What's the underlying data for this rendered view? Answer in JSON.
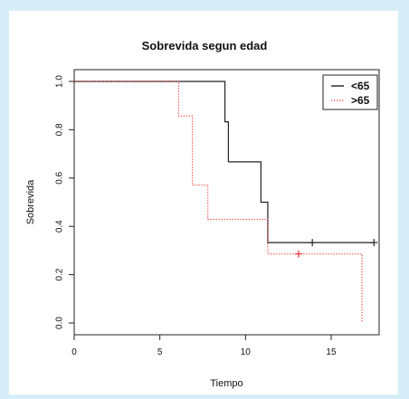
{
  "chart_data": {
    "type": "line",
    "subtype": "step",
    "title": "Sobrevida segun edad",
    "xlabel": "Tiempo",
    "ylabel": "Sobrevida",
    "xlim": [
      0,
      17.8
    ],
    "ylim": [
      0,
      1
    ],
    "x_ticks": [
      0,
      5,
      10,
      15
    ],
    "y_ticks": [
      0.0,
      0.2,
      0.4,
      0.6,
      0.8,
      1.0
    ],
    "x_tick_labels": [
      "0",
      "5",
      "10",
      "15"
    ],
    "y_tick_labels": [
      "0.0",
      "0.2",
      "0.4",
      "0.6",
      "0.8",
      "1.0"
    ],
    "grid": false,
    "legend": {
      "position": "top-right",
      "entries": [
        "<65",
        ">65"
      ]
    },
    "series": [
      {
        "name": "<65",
        "color": "#222222",
        "dash": "solid",
        "points": [
          {
            "x": 0,
            "y": 1.0
          },
          {
            "x": 8.8,
            "y": 1.0
          },
          {
            "x": 8.8,
            "y": 0.833
          },
          {
            "x": 9.0,
            "y": 0.833
          },
          {
            "x": 9.0,
            "y": 0.667
          },
          {
            "x": 10.9,
            "y": 0.667
          },
          {
            "x": 10.9,
            "y": 0.5
          },
          {
            "x": 11.3,
            "y": 0.5
          },
          {
            "x": 11.3,
            "y": 0.333
          },
          {
            "x": 17.5,
            "y": 0.333
          }
        ],
        "censored": [
          {
            "x": 13.9,
            "y": 0.333
          },
          {
            "x": 17.5,
            "y": 0.333
          }
        ]
      },
      {
        "name": ">65",
        "color": "#ee3333",
        "dash": "dotted",
        "points": [
          {
            "x": 0,
            "y": 1.0
          },
          {
            "x": 6.1,
            "y": 1.0
          },
          {
            "x": 6.1,
            "y": 0.857
          },
          {
            "x": 6.9,
            "y": 0.857
          },
          {
            "x": 6.9,
            "y": 0.571
          },
          {
            "x": 7.8,
            "y": 0.571
          },
          {
            "x": 7.8,
            "y": 0.429
          },
          {
            "x": 11.3,
            "y": 0.429
          },
          {
            "x": 11.3,
            "y": 0.286
          },
          {
            "x": 16.8,
            "y": 0.286
          },
          {
            "x": 16.8,
            "y": 0.0
          }
        ],
        "censored": [
          {
            "x": 13.1,
            "y": 0.286
          }
        ]
      }
    ]
  }
}
